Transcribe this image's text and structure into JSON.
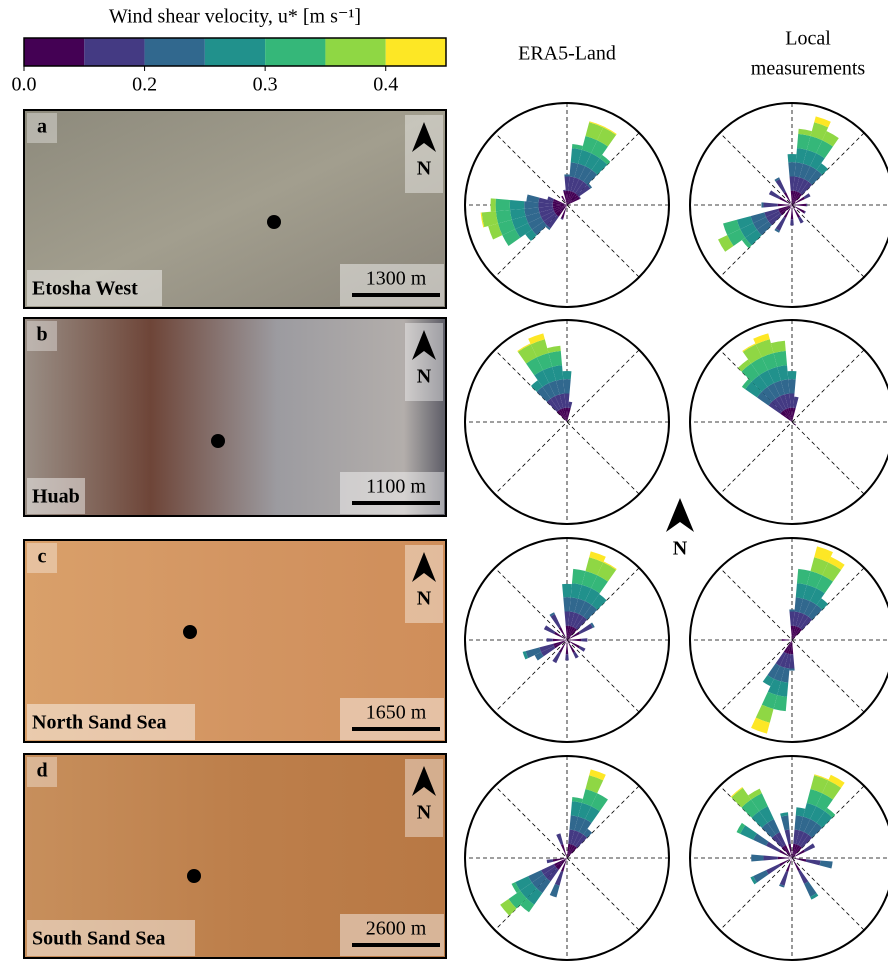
{
  "colorbar": {
    "title": "Wind shear velocity, u* [m s⁻¹]",
    "bounds": [
      0.0,
      0.15,
      0.2,
      0.25,
      0.3,
      0.35,
      0.4,
      0.45
    ],
    "colors": [
      "#440154",
      "#443a83",
      "#31688e",
      "#21918c",
      "#35b779",
      "#8fd744",
      "#fde725"
    ],
    "ticks": [
      {
        "value": 0,
        "label": "0.0"
      },
      0.2,
      0.3,
      0.4
    ]
  },
  "columns": {
    "era5": "ERA5-Land",
    "local": [
      "Local",
      "measurements"
    ]
  },
  "north": "N",
  "sites": [
    {
      "letter": "a",
      "name": "Etosha West",
      "scale": "1300 m",
      "era5": [
        [
          0,
          0.3
        ],
        [
          10,
          0.6
        ],
        [
          20,
          0.85
        ],
        [
          30,
          0.85
        ],
        [
          40,
          0.6
        ],
        [
          50,
          0.3
        ],
        [
          60,
          0.15
        ],
        [
          200,
          0.15
        ],
        [
          220,
          0.3
        ],
        [
          230,
          0.5
        ],
        [
          240,
          0.7
        ],
        [
          250,
          0.8
        ],
        [
          260,
          0.85
        ],
        [
          270,
          0.75
        ],
        [
          280,
          0.4
        ],
        [
          290,
          0.2
        ],
        [
          330,
          0.1
        ],
        [
          350,
          0.15
        ]
      ],
      "local": [
        [
          0,
          0.5
        ],
        [
          10,
          0.75
        ],
        [
          20,
          0.9
        ],
        [
          30,
          0.8
        ],
        [
          40,
          0.5
        ],
        [
          60,
          0.2
        ],
        [
          90,
          0.15
        ],
        [
          120,
          0.15
        ],
        [
          150,
          0.2
        ],
        [
          180,
          0.2
        ],
        [
          210,
          0.3
        ],
        [
          230,
          0.6
        ],
        [
          240,
          0.8
        ],
        [
          250,
          0.7
        ],
        [
          270,
          0.3
        ],
        [
          300,
          0.25
        ],
        [
          330,
          0.3
        ]
      ]
    },
    {
      "letter": "b",
      "name": "Huab",
      "scale": "1100 m",
      "era5": [
        [
          320,
          0.5
        ],
        [
          330,
          0.85
        ],
        [
          340,
          0.9
        ],
        [
          350,
          0.75
        ],
        [
          0,
          0.5
        ],
        [
          10,
          0.2
        ]
      ],
      "local": [
        [
          310,
          0.6
        ],
        [
          320,
          0.75
        ],
        [
          330,
          0.85
        ],
        [
          340,
          0.9
        ],
        [
          350,
          0.8
        ],
        [
          0,
          0.5
        ],
        [
          10,
          0.25
        ],
        [
          130,
          0.05
        ]
      ]
    },
    {
      "letter": "c",
      "name": "North Sand Sea",
      "scale": "1650 m",
      "era5": [
        [
          0,
          0.55
        ],
        [
          10,
          0.7
        ],
        [
          20,
          0.9
        ],
        [
          30,
          0.85
        ],
        [
          40,
          0.55
        ],
        [
          60,
          0.3
        ],
        [
          90,
          0.2
        ],
        [
          120,
          0.2
        ],
        [
          150,
          0.2
        ],
        [
          180,
          0.2
        ],
        [
          210,
          0.25
        ],
        [
          240,
          0.35
        ],
        [
          250,
          0.45
        ],
        [
          270,
          0.2
        ],
        [
          300,
          0.25
        ],
        [
          330,
          0.3
        ]
      ],
      "local": [
        [
          0,
          0.3
        ],
        [
          10,
          0.7
        ],
        [
          20,
          0.95
        ],
        [
          30,
          0.9
        ],
        [
          40,
          0.5
        ],
        [
          180,
          0.3
        ],
        [
          190,
          0.7
        ],
        [
          200,
          0.95
        ],
        [
          210,
          0.5
        ],
        [
          270,
          0.1
        ]
      ]
    },
    {
      "letter": "d",
      "name": "South Sand Sea",
      "scale": "2600 m",
      "era5": [
        [
          10,
          0.6
        ],
        [
          20,
          0.9
        ],
        [
          30,
          0.7
        ],
        [
          40,
          0.35
        ],
        [
          200,
          0.4
        ],
        [
          220,
          0.65
        ],
        [
          230,
          0.8
        ],
        [
          240,
          0.6
        ],
        [
          260,
          0.2
        ],
        [
          340,
          0.25
        ]
      ],
      "local": [
        [
          10,
          0.5
        ],
        [
          20,
          0.85
        ],
        [
          30,
          0.9
        ],
        [
          40,
          0.6
        ],
        [
          60,
          0.25
        ],
        [
          100,
          0.4
        ],
        [
          150,
          0.45
        ],
        [
          200,
          0.3
        ],
        [
          240,
          0.45
        ],
        [
          270,
          0.4
        ],
        [
          300,
          0.6
        ],
        [
          320,
          0.85
        ],
        [
          330,
          0.75
        ],
        [
          350,
          0.45
        ]
      ]
    }
  ]
}
